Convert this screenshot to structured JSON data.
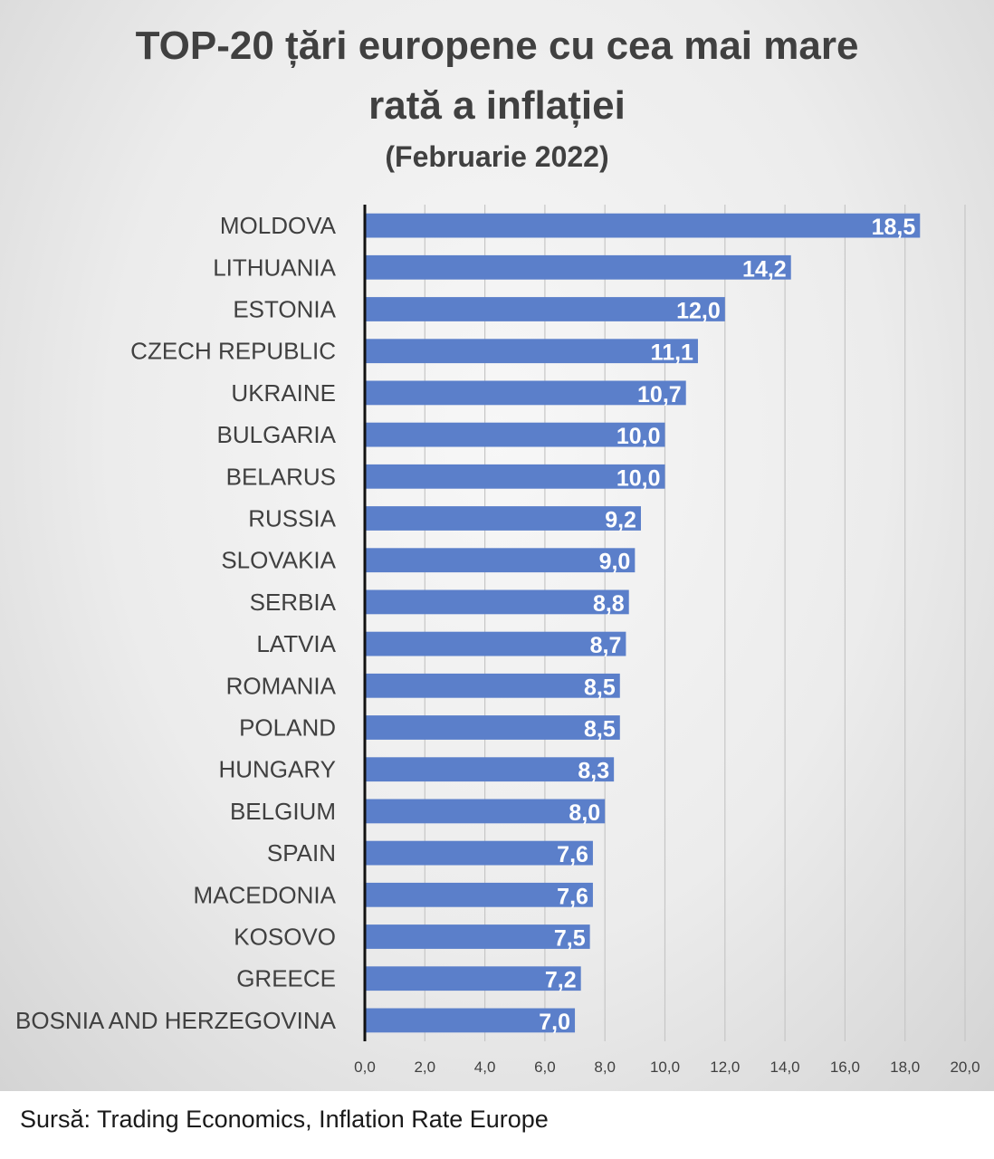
{
  "chart_data": {
    "type": "bar",
    "orientation": "horizontal",
    "title_line1": "TOP-20 țări europene cu cea mai mare",
    "title_line2": "rată a inflației",
    "subtitle": "(Februarie 2022)",
    "categories": [
      "MOLDOVA",
      "LITHUANIA",
      "ESTONIA",
      "CZECH REPUBLIC",
      "UKRAINE",
      "BULGARIA",
      "BELARUS",
      "RUSSIA",
      "SLOVAKIA",
      "SERBIA",
      "LATVIA",
      "ROMANIA",
      "POLAND",
      "HUNGARY",
      "BELGIUM",
      "SPAIN",
      "MACEDONIA",
      "KOSOVO",
      "GREECE",
      "BOSNIA AND HERZEGOVINA"
    ],
    "values": [
      18.5,
      14.2,
      12.0,
      11.1,
      10.7,
      10.0,
      10.0,
      9.2,
      9.0,
      8.8,
      8.7,
      8.5,
      8.5,
      8.3,
      8.0,
      7.6,
      7.6,
      7.5,
      7.2,
      7.0
    ],
    "value_labels": [
      "18,5",
      "14,2",
      "12,0",
      "11,1",
      "10,7",
      "10,0",
      "10,0",
      "9,2",
      "9,0",
      "8,8",
      "8,7",
      "8,5",
      "8,5",
      "8,3",
      "8,0",
      "7,6",
      "7,6",
      "7,5",
      "7,2",
      "7,0"
    ],
    "xlim": [
      0,
      20
    ],
    "x_ticks": [
      "0,0",
      "2,0",
      "4,0",
      "6,0",
      "8,0",
      "10,0",
      "12,0",
      "14,0",
      "16,0",
      "18,0",
      "20,0"
    ],
    "grid": true,
    "legend": "none",
    "bar_color": "#5b7fca"
  },
  "source": "Sursă: Trading Economics, Inflation Rate Europe"
}
